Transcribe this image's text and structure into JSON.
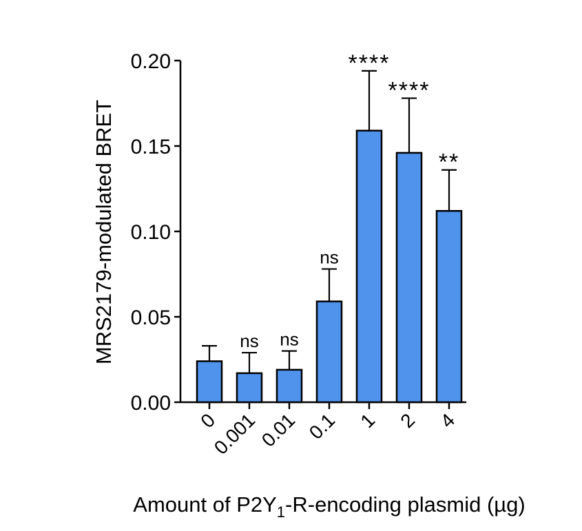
{
  "chart_data": {
    "type": "bar",
    "title": "",
    "xlabel": "Amount of P2Y",
    "xlabel_sub": "1",
    "xlabel_suffix": "-R-encoding plasmid (µg)",
    "ylabel": "MRS2179-modulated BRET",
    "ylim": [
      0,
      0.2
    ],
    "yticks": [
      "0.00",
      "0.05",
      "0.10",
      "0.15",
      "0.20"
    ],
    "categories": [
      "0",
      "0.001",
      "0.01",
      "0.1",
      "1",
      "2",
      "4"
    ],
    "values": [
      0.024,
      0.017,
      0.019,
      0.059,
      0.159,
      0.146,
      0.112
    ],
    "errors": [
      0.009,
      0.012,
      0.011,
      0.019,
      0.035,
      0.032,
      0.024
    ],
    "significance": [
      "",
      "ns",
      "ns",
      "ns",
      "****",
      "****",
      "**"
    ],
    "bar_color": "#4f93ec",
    "bar_edge_color": "#000000",
    "grid": false,
    "legend": "none"
  }
}
